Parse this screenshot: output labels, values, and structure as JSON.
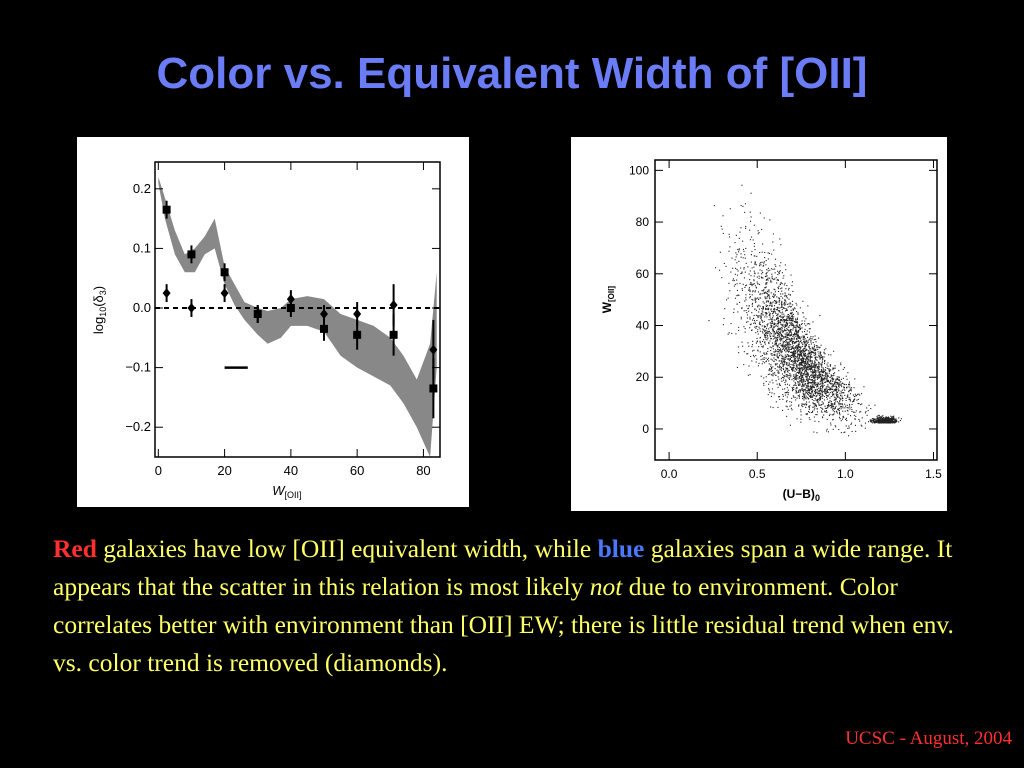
{
  "slide": {
    "title": "Color vs. Equivalent Width of [OII]",
    "caption": {
      "red_word": "Red",
      "part1": " galaxies have low [OII] equivalent width, while ",
      "blue_word": "blue",
      "part2": " galaxies span a wide range.  It appears that the scatter in this relation is most likely ",
      "italic_word": "not",
      "part3": " due to environment.  Color correlates better with environment than [OII] EW; there is little residual trend when env. vs. color trend is removed (diamonds)."
    },
    "footer": "UCSC - August, 2004"
  },
  "chart_data": [
    {
      "type": "line",
      "xlabel_main": "W",
      "xlabel_sub": "[OII]",
      "ylabel": "log10(δ3)",
      "ylabel_parts": {
        "pre": "log",
        "sub": "10",
        "open": "(δ",
        "sub2": "3",
        "close": ")"
      },
      "xlim": [
        -1,
        85
      ],
      "ylim": [
        -0.25,
        0.245
      ],
      "xticks": [
        0,
        20,
        40,
        60,
        80
      ],
      "xtick_labels": [
        "0",
        "20",
        "40",
        "60",
        "80"
      ],
      "yticks": [
        -0.2,
        -0.1,
        0.0,
        0.1,
        0.2
      ],
      "ytick_labels": [
        "−0.2",
        "−0.1",
        "0.0",
        "0.1",
        "0.2"
      ],
      "reference_line_y": 0.0,
      "band": {
        "x": [
          0,
          2,
          5,
          8,
          11,
          14,
          17,
          20,
          23,
          26,
          30,
          33,
          37,
          40,
          45,
          50,
          55,
          60,
          65,
          70,
          74,
          78,
          82,
          84
        ],
        "upper": [
          0.22,
          0.185,
          0.13,
          0.09,
          0.1,
          0.12,
          0.15,
          0.07,
          0.04,
          0.01,
          0.0,
          -0.005,
          0.0,
          0.015,
          0.02,
          0.015,
          -0.01,
          -0.02,
          -0.03,
          -0.05,
          -0.08,
          -0.12,
          -0.06,
          0.06
        ],
        "lower": [
          0.21,
          0.15,
          0.09,
          0.06,
          0.06,
          0.09,
          0.1,
          0.04,
          0.005,
          -0.02,
          -0.045,
          -0.06,
          -0.05,
          -0.03,
          -0.03,
          -0.04,
          -0.08,
          -0.1,
          -0.115,
          -0.13,
          -0.16,
          -0.2,
          -0.25,
          -0.1
        ]
      },
      "series": [
        {
          "marker": "square",
          "x": [
            2.5,
            10,
            20,
            30,
            40,
            50,
            60,
            71,
            83
          ],
          "y": [
            0.165,
            0.09,
            0.06,
            -0.01,
            0.0,
            -0.035,
            -0.045,
            -0.045,
            -0.135
          ],
          "err": [
            0.015,
            0.015,
            0.015,
            0.015,
            0.015,
            0.02,
            0.025,
            0.035,
            0.05
          ]
        },
        {
          "marker": "diamond",
          "x": [
            2.5,
            10,
            20,
            30,
            40,
            50,
            60,
            71,
            83
          ],
          "y": [
            0.025,
            0.0,
            0.025,
            -0.01,
            0.015,
            -0.01,
            -0.01,
            0.005,
            -0.07
          ],
          "err": [
            0.015,
            0.015,
            0.015,
            0.015,
            0.015,
            0.015,
            0.02,
            0.035,
            0.05
          ]
        }
      ],
      "annotation_segment": {
        "x1": 20,
        "x2": 27,
        "y": -0.1
      }
    },
    {
      "type": "scatter",
      "xlabel": "(U−B)",
      "xlabel_sub": "0",
      "ylabel_main": "W",
      "ylabel_sub": "[OII]",
      "xlim": [
        -0.08,
        1.52
      ],
      "ylim": [
        -12,
        104
      ],
      "xticks": [
        0.0,
        0.5,
        1.0,
        1.5
      ],
      "xtick_labels": [
        "0.0",
        "0.5",
        "1.0",
        "1.5"
      ],
      "yticks": [
        0,
        20,
        40,
        60,
        80,
        100
      ],
      "ytick_labels": [
        "0",
        "20",
        "40",
        "60",
        "80",
        "100"
      ],
      "n_points": 3500,
      "distribution": {
        "ridge": [
          [
            0.45,
            55
          ],
          [
            0.6,
            40
          ],
          [
            0.8,
            22
          ],
          [
            1.0,
            12
          ],
          [
            1.15,
            6
          ],
          [
            1.25,
            3
          ],
          [
            1.4,
            1
          ]
        ],
        "clump": {
          "x": 1.22,
          "y": 2.5
        }
      }
    }
  ]
}
